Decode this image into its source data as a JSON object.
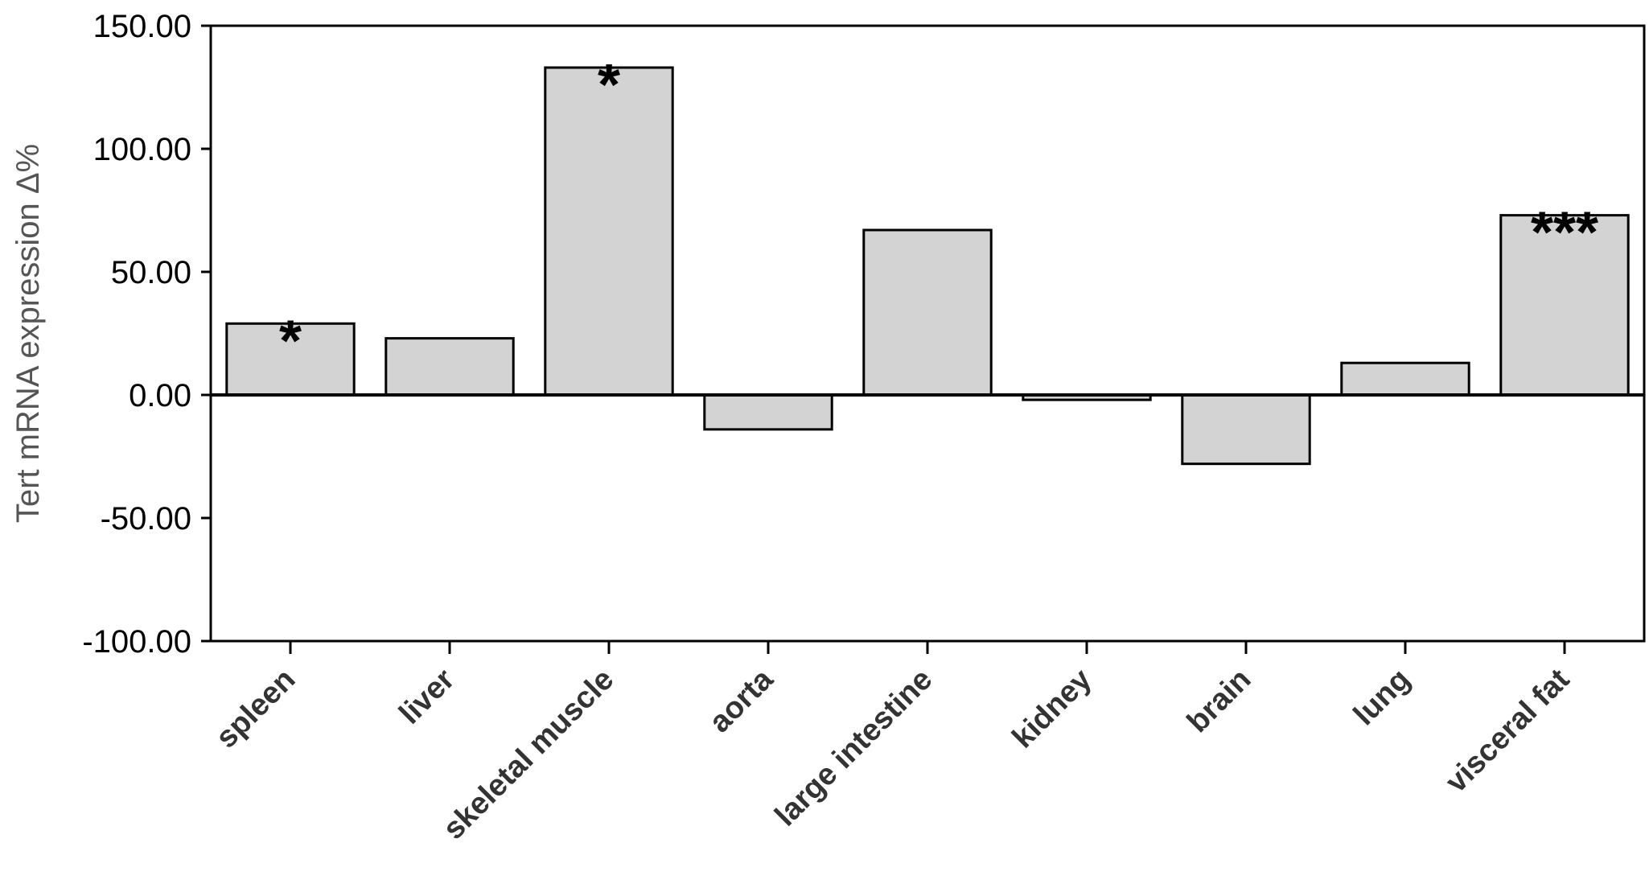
{
  "chart_data": {
    "type": "bar",
    "title": "",
    "xlabel": "",
    "ylabel": "Tert mRNA expression Δ%",
    "categories": [
      "spleen",
      "liver",
      "skeletal muscle",
      "aorta",
      "large intestine",
      "kidney",
      "brain",
      "lung",
      "visceral fat"
    ],
    "values": [
      29,
      23,
      133,
      -14,
      67,
      -2,
      -28,
      13,
      73
    ],
    "significance": [
      "*",
      "",
      "*",
      "",
      "",
      "",
      "",
      "",
      "***"
    ],
    "ylim": [
      -100,
      150
    ],
    "yticks": [
      150,
      100,
      50,
      0,
      -50,
      -100
    ],
    "ytick_labels": [
      "150.00",
      "100.00",
      "50.00",
      "0.00",
      "-50.00",
      "-100.00"
    ],
    "grid": false,
    "legend": "none",
    "colors": {
      "bar_fill": "#d3d3d3",
      "bar_stroke": "#000000",
      "axis": "#000000",
      "category_text": "#333333",
      "ylabel_text": "#555555"
    }
  }
}
